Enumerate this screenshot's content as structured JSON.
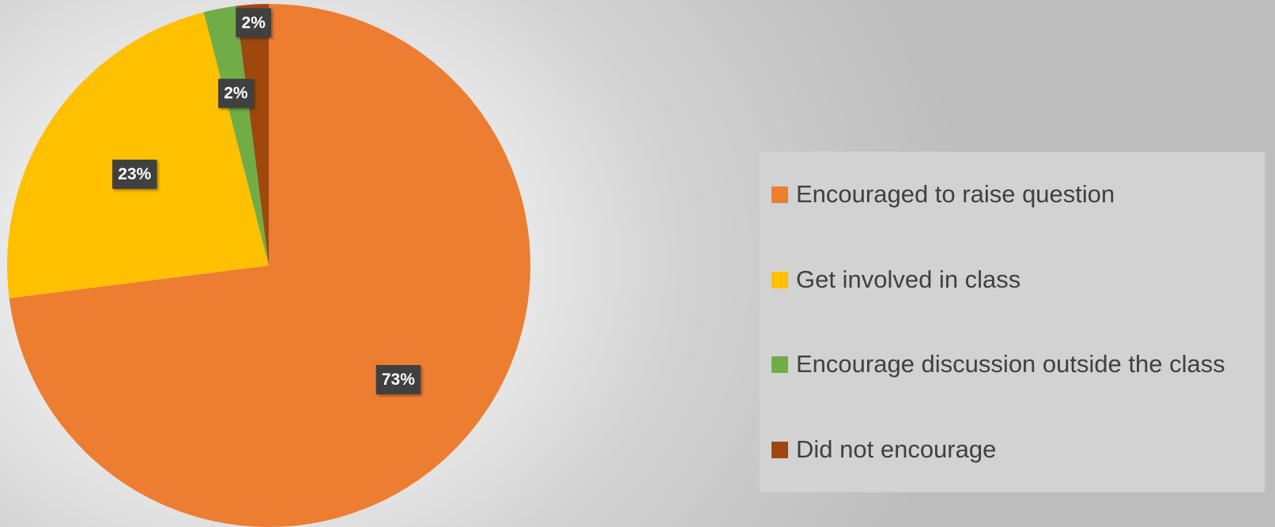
{
  "chart_data": {
    "type": "pie",
    "categories": [
      "Encouraged to raise question",
      "Get involved in class",
      "Encourage discussion outside the class",
      "Did not encourage"
    ],
    "values": [
      73,
      23,
      2,
      2
    ],
    "data_labels": [
      "73%",
      "23%",
      "2%",
      "2%"
    ],
    "colors": [
      "#ED7D31",
      "#FFC000",
      "#70AD47",
      "#9E480E"
    ],
    "start_angle": "12 o'clock",
    "direction": "clockwise",
    "title": "",
    "legend_position": "right"
  }
}
